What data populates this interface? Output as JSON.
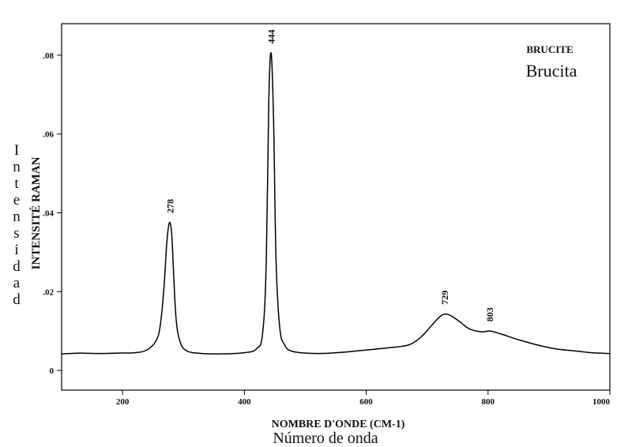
{
  "chart_data": {
    "type": "line",
    "title": "BRUCITE",
    "subtitle": "Brucita",
    "xlabel": "NOMBRE D'ONDE (CM-1)",
    "xlabel_secondary": "Número de onda",
    "ylabel": "INTENSITÉ RAMAN",
    "ylabel_secondary": "Intensidad",
    "xlim": [
      100,
      1000
    ],
    "ylim": [
      -0.005,
      0.088
    ],
    "x_ticks": [
      200,
      400,
      600,
      800,
      1000
    ],
    "x_tick_labels": [
      "200",
      "400",
      "600",
      "800",
      "1000"
    ],
    "y_ticks": [
      0,
      0.02,
      0.04,
      0.06,
      0.08
    ],
    "y_tick_labels": [
      "0",
      ".02",
      ".04",
      ".06",
      ".08"
    ],
    "grid": false,
    "series": [
      {
        "x": [
          100,
          130,
          160,
          190,
          220,
          240,
          255,
          262,
          268,
          272,
          275,
          278,
          281,
          284,
          288,
          294,
          305,
          330,
          360,
          400,
          420,
          430,
          436,
          440,
          444,
          448,
          452,
          458,
          466,
          480,
          520,
          560,
          600,
          640,
          670,
          690,
          705,
          718,
          729,
          740,
          755,
          770,
          790,
          803,
          820,
          850,
          880,
          910,
          940,
          970,
          1000
        ],
        "y": [
          0.0042,
          0.0044,
          0.0043,
          0.0044,
          0.0045,
          0.0052,
          0.0075,
          0.0115,
          0.021,
          0.031,
          0.036,
          0.0375,
          0.034,
          0.024,
          0.013,
          0.0075,
          0.005,
          0.0043,
          0.0042,
          0.0045,
          0.0055,
          0.0095,
          0.028,
          0.068,
          0.0805,
          0.063,
          0.028,
          0.011,
          0.0065,
          0.0048,
          0.0043,
          0.0046,
          0.0052,
          0.0058,
          0.0065,
          0.0085,
          0.011,
          0.0132,
          0.0143,
          0.0138,
          0.0122,
          0.0105,
          0.0098,
          0.01,
          0.0093,
          0.0078,
          0.0065,
          0.0055,
          0.005,
          0.0045,
          0.0043
        ]
      }
    ],
    "annotations": [
      {
        "text": "278",
        "x": 278,
        "y": 0.0375
      },
      {
        "text": "444",
        "x": 444,
        "y": 0.0805
      },
      {
        "text": "729",
        "x": 729,
        "y": 0.0143
      },
      {
        "text": "803",
        "x": 803,
        "y": 0.01
      }
    ]
  }
}
